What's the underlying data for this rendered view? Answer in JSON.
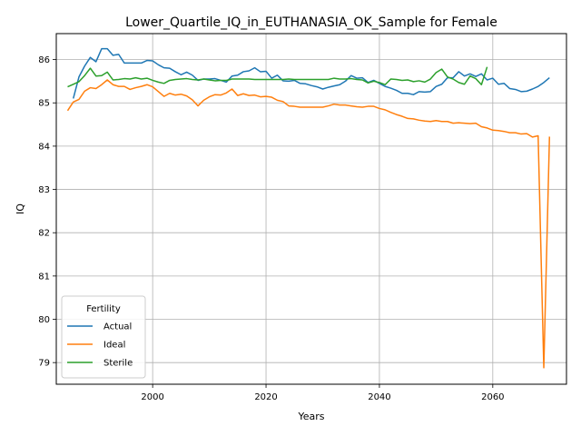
{
  "chart_data": {
    "type": "line",
    "title": "Lower_Quartile_IQ_in_EUTHANASIA_OK_Sample for Female",
    "xlabel": "Years",
    "ylabel": "IQ",
    "xlim": [
      1983,
      2073
    ],
    "ylim": [
      78.5,
      86.6
    ],
    "xticks": [
      2000,
      2020,
      2040,
      2060
    ],
    "yticks": [
      79,
      80,
      81,
      82,
      83,
      84,
      85,
      86
    ],
    "grid": true,
    "legend": {
      "title": "Fertility",
      "location": "lower-left"
    },
    "series": [
      {
        "name": "Actual",
        "color": "#1f77b4",
        "x": [
          1986,
          1987,
          1988,
          1989,
          1990,
          1991,
          1992,
          1993,
          1994,
          1995,
          1996,
          1997,
          1998,
          1999,
          2000,
          2001,
          2002,
          2003,
          2004,
          2005,
          2006,
          2007,
          2008,
          2009,
          2010,
          2011,
          2012,
          2013,
          2014,
          2015,
          2016,
          2017,
          2018,
          2019,
          2020,
          2021,
          2022,
          2023,
          2024,
          2025,
          2026,
          2027,
          2028,
          2029,
          2030,
          2031,
          2032,
          2033,
          2034,
          2035,
          2036,
          2037,
          2038,
          2039,
          2040,
          2041,
          2042,
          2043,
          2044,
          2045,
          2046,
          2047,
          2048,
          2049,
          2050,
          2051,
          2052,
          2053,
          2054,
          2055,
          2056,
          2057,
          2058,
          2059,
          2060,
          2061,
          2062,
          2063,
          2064,
          2065,
          2066,
          2067,
          2068,
          2069,
          2070
        ],
        "y": [
          85.1,
          85.6,
          85.85,
          86.05,
          85.95,
          86.25,
          86.25,
          86.1,
          86.12,
          85.92,
          85.92,
          85.92,
          85.92,
          85.98,
          85.97,
          85.88,
          85.81,
          85.8,
          85.72,
          85.65,
          85.71,
          85.64,
          85.52,
          85.55,
          85.55,
          85.56,
          85.52,
          85.48,
          85.62,
          85.64,
          85.72,
          85.74,
          85.81,
          85.72,
          85.73,
          85.57,
          85.64,
          85.51,
          85.5,
          85.52,
          85.45,
          85.44,
          85.4,
          85.37,
          85.32,
          85.36,
          85.39,
          85.42,
          85.5,
          85.63,
          85.57,
          85.58,
          85.47,
          85.52,
          85.45,
          85.38,
          85.34,
          85.29,
          85.22,
          85.22,
          85.19,
          85.26,
          85.25,
          85.26,
          85.38,
          85.43,
          85.58,
          85.58,
          85.72,
          85.62,
          85.67,
          85.61,
          85.67,
          85.53,
          85.57,
          85.43,
          85.45,
          85.33,
          85.31,
          85.26,
          85.27,
          85.32,
          85.38,
          85.47,
          85.58
        ]
      },
      {
        "name": "Ideal",
        "color": "#ff7f0e",
        "x": [
          1985,
          1986,
          1987,
          1988,
          1989,
          1990,
          1991,
          1992,
          1993,
          1994,
          1995,
          1996,
          1997,
          1998,
          1999,
          2000,
          2001,
          2002,
          2003,
          2004,
          2005,
          2006,
          2007,
          2008,
          2009,
          2010,
          2011,
          2012,
          2013,
          2014,
          2015,
          2016,
          2017,
          2018,
          2019,
          2020,
          2021,
          2022,
          2023,
          2024,
          2025,
          2026,
          2027,
          2028,
          2029,
          2030,
          2031,
          2032,
          2033,
          2034,
          2035,
          2036,
          2037,
          2038,
          2039,
          2040,
          2041,
          2042,
          2043,
          2044,
          2045,
          2046,
          2047,
          2048,
          2049,
          2050,
          2051,
          2052,
          2053,
          2054,
          2055,
          2056,
          2057,
          2058,
          2059,
          2060,
          2061,
          2062,
          2063,
          2064,
          2065,
          2066,
          2067,
          2068,
          2069,
          2070
        ],
        "y": [
          84.82,
          85.02,
          85.08,
          85.27,
          85.35,
          85.33,
          85.42,
          85.53,
          85.42,
          85.38,
          85.38,
          85.31,
          85.35,
          85.38,
          85.42,
          85.37,
          85.26,
          85.15,
          85.22,
          85.18,
          85.2,
          85.16,
          85.07,
          84.93,
          85.06,
          85.14,
          85.19,
          85.18,
          85.23,
          85.32,
          85.17,
          85.21,
          85.17,
          85.18,
          85.14,
          85.15,
          85.13,
          85.06,
          85.03,
          84.93,
          84.92,
          84.9,
          84.9,
          84.9,
          84.9,
          84.9,
          84.93,
          84.97,
          84.95,
          84.95,
          84.93,
          84.91,
          84.9,
          84.92,
          84.92,
          84.87,
          84.84,
          84.78,
          84.73,
          84.69,
          84.64,
          84.63,
          84.6,
          84.58,
          84.57,
          84.59,
          84.57,
          84.57,
          84.53,
          84.54,
          84.53,
          84.52,
          84.53,
          84.45,
          84.42,
          84.37,
          84.36,
          84.34,
          84.31,
          84.31,
          84.28,
          84.29,
          84.21,
          84.24,
          78.88,
          84.22
        ]
      },
      {
        "name": "Sterile",
        "color": "#2ca02c",
        "x": [
          1985,
          1986,
          1987,
          1988,
          1989,
          1990,
          1991,
          1992,
          1993,
          1994,
          1995,
          1996,
          1997,
          1998,
          1999,
          2000,
          2001,
          2002,
          2003,
          2004,
          2005,
          2006,
          2007,
          2008,
          2009,
          2010,
          2011,
          2012,
          2013,
          2014,
          2015,
          2016,
          2017,
          2018,
          2019,
          2020,
          2021,
          2022,
          2023,
          2024,
          2025,
          2026,
          2027,
          2028,
          2029,
          2030,
          2031,
          2032,
          2033,
          2034,
          2035,
          2036,
          2037,
          2038,
          2039,
          2040,
          2041,
          2042,
          2043,
          2044,
          2045,
          2046,
          2047,
          2048,
          2049,
          2050,
          2051,
          2052,
          2053,
          2054,
          2055,
          2056,
          2057,
          2058,
          2059
        ],
        "y": [
          85.37,
          85.43,
          85.49,
          85.63,
          85.8,
          85.62,
          85.63,
          85.71,
          85.53,
          85.54,
          85.56,
          85.55,
          85.58,
          85.55,
          85.57,
          85.52,
          85.48,
          85.45,
          85.52,
          85.54,
          85.55,
          85.56,
          85.54,
          85.53,
          85.55,
          85.53,
          85.51,
          85.52,
          85.52,
          85.55,
          85.55,
          85.55,
          85.55,
          85.54,
          85.54,
          85.54,
          85.54,
          85.54,
          85.54,
          85.55,
          85.54,
          85.54,
          85.54,
          85.54,
          85.54,
          85.54,
          85.54,
          85.57,
          85.55,
          85.55,
          85.56,
          85.54,
          85.53,
          85.46,
          85.5,
          85.47,
          85.42,
          85.55,
          85.54,
          85.52,
          85.53,
          85.49,
          85.51,
          85.48,
          85.55,
          85.7,
          85.78,
          85.6,
          85.55,
          85.47,
          85.43,
          85.62,
          85.56,
          85.42,
          85.83
        ]
      }
    ]
  }
}
